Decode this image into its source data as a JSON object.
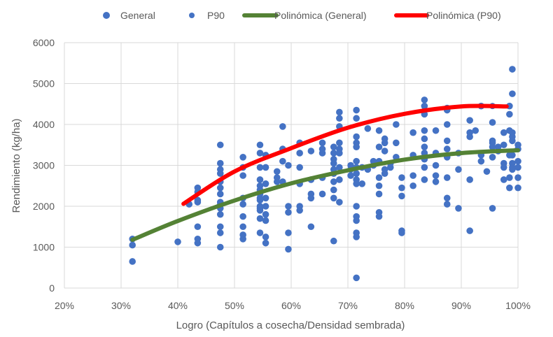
{
  "chart_data": {
    "type": "scatter",
    "title": "",
    "xlabel": "Logro (Capítulos a cosecha/Densidad sembrada)",
    "ylabel": "Rendimiento (kg/ha)",
    "xlim": [
      0.2,
      1.0
    ],
    "ylim": [
      0,
      6000
    ],
    "x_ticks": [
      0.2,
      0.3,
      0.4,
      0.5,
      0.6,
      0.7,
      0.8,
      0.9,
      1.0
    ],
    "x_tick_labels": [
      "20%",
      "30%",
      "40%",
      "50%",
      "60%",
      "70%",
      "80%",
      "90%",
      "100%"
    ],
    "y_ticks": [
      0,
      1000,
      2000,
      3000,
      4000,
      5000,
      6000
    ],
    "y_tick_labels": [
      "0",
      "1000",
      "2000",
      "3000",
      "4000",
      "5000",
      "6000"
    ],
    "grid": true,
    "legend_position": "top",
    "legend": [
      "General",
      "P90",
      "Polinómica (General)",
      "Polinómica (P90)"
    ],
    "colors": {
      "points": "#4472C4",
      "general_trend": "#548235",
      "p90_trend": "#FF0000"
    },
    "series": [
      {
        "name": "General",
        "kind": "points",
        "points": [
          [
            0.32,
            1200
          ],
          [
            0.32,
            1050
          ],
          [
            0.32,
            650
          ],
          [
            0.4,
            1130
          ],
          [
            0.42,
            2050
          ],
          [
            0.435,
            2450
          ],
          [
            0.435,
            2350
          ],
          [
            0.435,
            2150
          ],
          [
            0.435,
            2100
          ],
          [
            0.435,
            1500
          ],
          [
            0.435,
            1200
          ],
          [
            0.435,
            1100
          ],
          [
            0.475,
            3500
          ],
          [
            0.475,
            3050
          ],
          [
            0.475,
            2900
          ],
          [
            0.475,
            2800
          ],
          [
            0.475,
            2600
          ],
          [
            0.475,
            2450
          ],
          [
            0.475,
            2300
          ],
          [
            0.475,
            2100
          ],
          [
            0.475,
            2050
          ],
          [
            0.475,
            1950
          ],
          [
            0.475,
            1800
          ],
          [
            0.475,
            1500
          ],
          [
            0.475,
            1350
          ],
          [
            0.475,
            1000
          ],
          [
            0.515,
            3200
          ],
          [
            0.515,
            2950
          ],
          [
            0.515,
            2750
          ],
          [
            0.515,
            2200
          ],
          [
            0.515,
            2050
          ],
          [
            0.515,
            1750
          ],
          [
            0.515,
            1500
          ],
          [
            0.515,
            1300
          ],
          [
            0.515,
            1200
          ],
          [
            0.545,
            3500
          ],
          [
            0.545,
            3300
          ],
          [
            0.545,
            2950
          ],
          [
            0.545,
            2650
          ],
          [
            0.545,
            2500
          ],
          [
            0.545,
            2400
          ],
          [
            0.545,
            2300
          ],
          [
            0.545,
            2200
          ],
          [
            0.545,
            2150
          ],
          [
            0.545,
            2000
          ],
          [
            0.545,
            1950
          ],
          [
            0.545,
            1900
          ],
          [
            0.545,
            1700
          ],
          [
            0.545,
            1350
          ],
          [
            0.555,
            3250
          ],
          [
            0.555,
            2950
          ],
          [
            0.555,
            2550
          ],
          [
            0.555,
            2200
          ],
          [
            0.555,
            2000
          ],
          [
            0.555,
            1800
          ],
          [
            0.555,
            1650
          ],
          [
            0.555,
            1250
          ],
          [
            0.555,
            1100
          ],
          [
            0.575,
            2850
          ],
          [
            0.575,
            2700
          ],
          [
            0.575,
            2600
          ],
          [
            0.585,
            3950
          ],
          [
            0.585,
            3400
          ],
          [
            0.585,
            3100
          ],
          [
            0.585,
            2600
          ],
          [
            0.595,
            3000
          ],
          [
            0.595,
            2000
          ],
          [
            0.595,
            1850
          ],
          [
            0.595,
            1350
          ],
          [
            0.595,
            950
          ],
          [
            0.615,
            3550
          ],
          [
            0.615,
            3300
          ],
          [
            0.615,
            2950
          ],
          [
            0.615,
            2550
          ],
          [
            0.615,
            2000
          ],
          [
            0.615,
            1900
          ],
          [
            0.635,
            3350
          ],
          [
            0.635,
            2650
          ],
          [
            0.635,
            2300
          ],
          [
            0.635,
            2200
          ],
          [
            0.635,
            1500
          ],
          [
            0.655,
            3550
          ],
          [
            0.655,
            3400
          ],
          [
            0.655,
            3300
          ],
          [
            0.655,
            2700
          ],
          [
            0.655,
            2300
          ],
          [
            0.675,
            3450
          ],
          [
            0.675,
            3300
          ],
          [
            0.675,
            3150
          ],
          [
            0.675,
            3050
          ],
          [
            0.675,
            2900
          ],
          [
            0.675,
            2800
          ],
          [
            0.675,
            2600
          ],
          [
            0.675,
            2400
          ],
          [
            0.675,
            2200
          ],
          [
            0.675,
            1150
          ],
          [
            0.685,
            4300
          ],
          [
            0.685,
            4150
          ],
          [
            0.685,
            3950
          ],
          [
            0.685,
            3550
          ],
          [
            0.685,
            3400
          ],
          [
            0.685,
            3300
          ],
          [
            0.685,
            2950
          ],
          [
            0.685,
            2650
          ],
          [
            0.685,
            2100
          ],
          [
            0.705,
            3000
          ],
          [
            0.705,
            2900
          ],
          [
            0.705,
            2750
          ],
          [
            0.715,
            4350
          ],
          [
            0.715,
            4150
          ],
          [
            0.715,
            3700
          ],
          [
            0.715,
            3550
          ],
          [
            0.715,
            3450
          ],
          [
            0.715,
            3100
          ],
          [
            0.715,
            2950
          ],
          [
            0.715,
            2800
          ],
          [
            0.715,
            2650
          ],
          [
            0.715,
            2550
          ],
          [
            0.715,
            2000
          ],
          [
            0.715,
            1750
          ],
          [
            0.715,
            1650
          ],
          [
            0.715,
            1350
          ],
          [
            0.715,
            1250
          ],
          [
            0.715,
            250
          ],
          [
            0.725,
            2950
          ],
          [
            0.725,
            2550
          ],
          [
            0.735,
            3900
          ],
          [
            0.735,
            2900
          ],
          [
            0.745,
            3100
          ],
          [
            0.745,
            3000
          ],
          [
            0.755,
            3850
          ],
          [
            0.755,
            3450
          ],
          [
            0.755,
            3100
          ],
          [
            0.755,
            2700
          ],
          [
            0.755,
            2500
          ],
          [
            0.755,
            2300
          ],
          [
            0.755,
            1850
          ],
          [
            0.755,
            1750
          ],
          [
            0.765,
            3650
          ],
          [
            0.765,
            3550
          ],
          [
            0.765,
            3350
          ],
          [
            0.765,
            2900
          ],
          [
            0.765,
            2800
          ],
          [
            0.775,
            3050
          ],
          [
            0.775,
            2950
          ],
          [
            0.785,
            4000
          ],
          [
            0.785,
            3550
          ],
          [
            0.785,
            3200
          ],
          [
            0.795,
            2700
          ],
          [
            0.795,
            2450
          ],
          [
            0.795,
            2250
          ],
          [
            0.795,
            1400
          ],
          [
            0.795,
            1350
          ],
          [
            0.815,
            3800
          ],
          [
            0.815,
            3250
          ],
          [
            0.815,
            2750
          ],
          [
            0.815,
            2500
          ],
          [
            0.835,
            4600
          ],
          [
            0.835,
            4450
          ],
          [
            0.835,
            4250
          ],
          [
            0.835,
            3850
          ],
          [
            0.835,
            3650
          ],
          [
            0.835,
            3450
          ],
          [
            0.835,
            3300
          ],
          [
            0.835,
            3150
          ],
          [
            0.835,
            2950
          ],
          [
            0.835,
            2650
          ],
          [
            0.855,
            3850
          ],
          [
            0.855,
            3300
          ],
          [
            0.855,
            3000
          ],
          [
            0.855,
            2750
          ],
          [
            0.855,
            2600
          ],
          [
            0.875,
            4400
          ],
          [
            0.875,
            4350
          ],
          [
            0.875,
            4000
          ],
          [
            0.875,
            3600
          ],
          [
            0.875,
            3400
          ],
          [
            0.875,
            3200
          ],
          [
            0.875,
            2700
          ],
          [
            0.875,
            2200
          ],
          [
            0.875,
            2050
          ],
          [
            0.895,
            3300
          ],
          [
            0.895,
            2900
          ],
          [
            0.895,
            1950
          ],
          [
            0.915,
            4100
          ],
          [
            0.915,
            3800
          ],
          [
            0.915,
            3700
          ],
          [
            0.915,
            2650
          ],
          [
            0.915,
            1400
          ],
          [
            0.925,
            3850
          ],
          [
            0.935,
            4450
          ],
          [
            0.935,
            3250
          ],
          [
            0.935,
            3100
          ],
          [
            0.945,
            2850
          ],
          [
            0.955,
            4050
          ],
          [
            0.955,
            3600
          ],
          [
            0.955,
            3550
          ],
          [
            0.955,
            3450
          ],
          [
            0.955,
            3200
          ],
          [
            0.955,
            1950
          ],
          [
            0.965,
            3450
          ],
          [
            0.965,
            3350
          ],
          [
            0.975,
            3800
          ],
          [
            0.975,
            3500
          ],
          [
            0.975,
            3050
          ],
          [
            0.975,
            2950
          ],
          [
            0.975,
            2650
          ],
          [
            0.985,
            4450
          ],
          [
            0.985,
            4250
          ],
          [
            0.985,
            3850
          ],
          [
            0.985,
            3250
          ],
          [
            0.985,
            2700
          ],
          [
            0.985,
            2450
          ],
          [
            0.99,
            5350
          ],
          [
            0.99,
            4750
          ],
          [
            0.99,
            3800
          ],
          [
            0.99,
            3700
          ],
          [
            0.99,
            3600
          ],
          [
            0.99,
            3250
          ],
          [
            0.99,
            3050
          ],
          [
            0.99,
            2950
          ],
          [
            0.99,
            2900
          ],
          [
            1.0,
            3500
          ],
          [
            1.0,
            3400
          ],
          [
            1.0,
            3100
          ],
          [
            1.0,
            2950
          ],
          [
            1.0,
            2700
          ],
          [
            1.0,
            2450
          ]
        ]
      },
      {
        "name": "P90",
        "kind": "points",
        "points": [
          [
            0.42,
            2050
          ],
          [
            0.585,
            3400
          ],
          [
            0.685,
            3950
          ],
          [
            0.755,
            3850
          ],
          [
            0.875,
            4350
          ],
          [
            0.955,
            4450
          ],
          [
            0.985,
            4450
          ]
        ]
      },
      {
        "name": "Polinómica (General)",
        "kind": "trendline",
        "points": [
          [
            0.32,
            1180
          ],
          [
            0.4,
            1640
          ],
          [
            0.5,
            2140
          ],
          [
            0.6,
            2560
          ],
          [
            0.7,
            2880
          ],
          [
            0.8,
            3140
          ],
          [
            0.9,
            3300
          ],
          [
            1.0,
            3370
          ]
        ]
      },
      {
        "name": "Polinómica (P90)",
        "kind": "trendline",
        "points": [
          [
            0.41,
            2060
          ],
          [
            0.5,
            2850
          ],
          [
            0.6,
            3420
          ],
          [
            0.7,
            3920
          ],
          [
            0.8,
            4260
          ],
          [
            0.9,
            4440
          ],
          [
            0.98,
            4440
          ]
        ]
      }
    ]
  }
}
